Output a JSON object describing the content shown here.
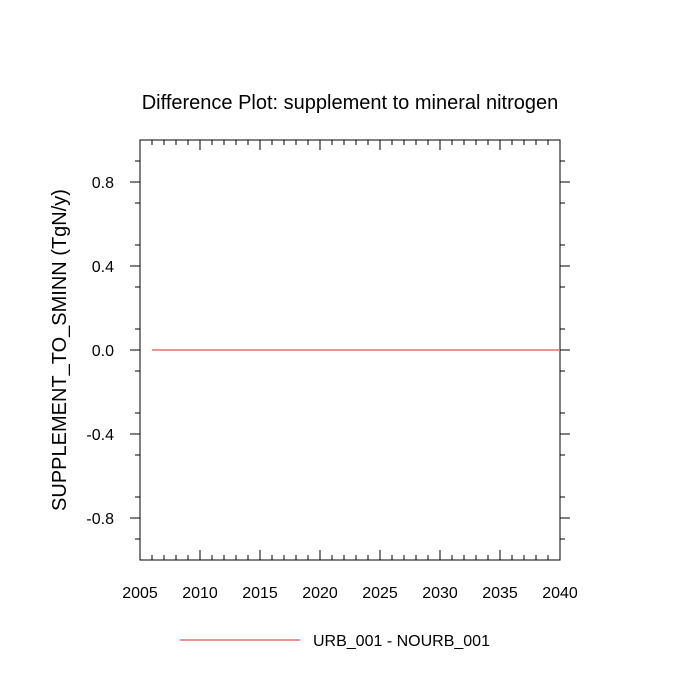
{
  "chart_data": {
    "type": "line",
    "title": "Difference Plot: supplement to mineral nitrogen",
    "xlabel": "",
    "ylabel": "SUPPLEMENT_TO_SMINN  (TgN/y)",
    "xlim": [
      2005,
      2040
    ],
    "ylim": [
      -1.0,
      1.0
    ],
    "xticks": [
      "2005",
      "2010",
      "2015",
      "2020",
      "2025",
      "2030",
      "2035",
      "2040"
    ],
    "yticks": [
      "-0.8",
      "-0.4",
      "0.0",
      "0.4",
      "0.8"
    ],
    "grid": false,
    "legend_position": "bottom-center",
    "series": [
      {
        "name": "URB_001 - NOURB_001",
        "color": "#e0706a",
        "x": [
          2006,
          2040
        ],
        "y": [
          0.0,
          0.0
        ]
      }
    ]
  }
}
